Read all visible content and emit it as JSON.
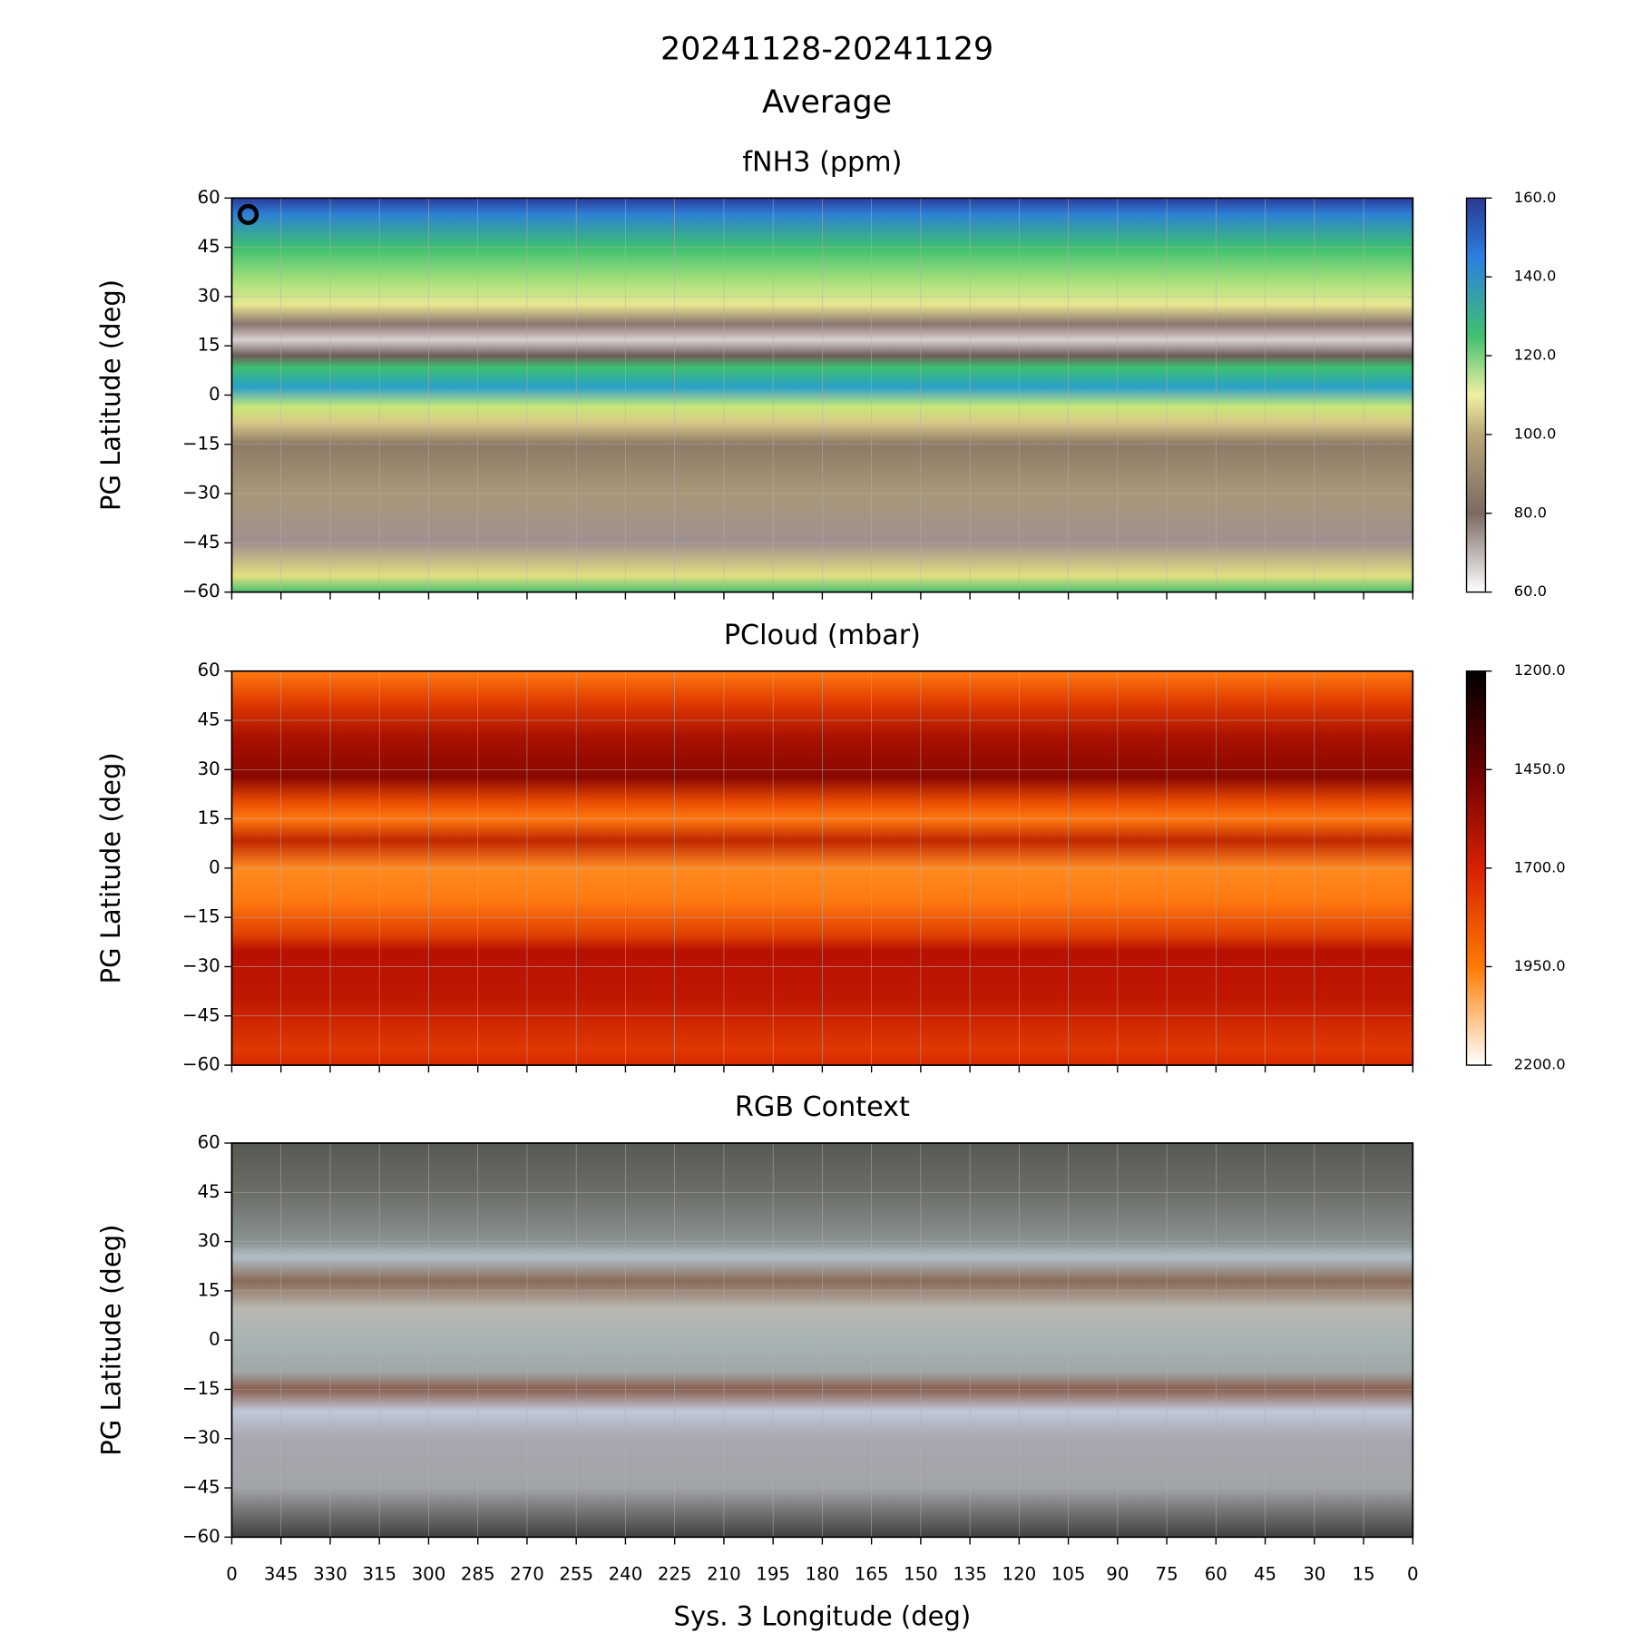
{
  "title": [
    "20241128-20241129",
    "Average"
  ],
  "chart_data": [
    {
      "type": "heatmap",
      "title": "fNH3 (ppm)",
      "ylabel": "PG Latitude (deg)",
      "ylim": [
        -60,
        60
      ],
      "yticks": [
        {
          "value": -60,
          "label": "−60"
        },
        {
          "value": -45,
          "label": "−45"
        },
        {
          "value": -30,
          "label": "−30"
        },
        {
          "value": -15,
          "label": "−15"
        },
        0,
        15,
        30,
        45,
        60
      ],
      "marker": {
        "x": 355,
        "y": 55
      },
      "clim": [
        60,
        160
      ],
      "cticks": [
        {
          "value": 60,
          "label": "60.0"
        },
        {
          "value": 80,
          "label": "80.0"
        },
        {
          "value": 100,
          "label": "100.0"
        },
        {
          "value": 120,
          "label": "120.0"
        },
        {
          "value": 140,
          "label": "140.0"
        },
        {
          "value": 160,
          "label": "160.0"
        }
      ],
      "grid": true
    },
    {
      "type": "heatmap",
      "title": "PCloud (mbar)",
      "ylabel": "PG Latitude (deg)",
      "ylim": [
        -60,
        60
      ],
      "yticks": [
        {
          "value": -60,
          "label": "−60"
        },
        {
          "value": -45,
          "label": "−45"
        },
        {
          "value": -30,
          "label": "−30"
        },
        {
          "value": -15,
          "label": "−15"
        },
        0,
        15,
        30,
        45,
        60
      ],
      "clim": [
        2200,
        1200
      ],
      "cticks": [
        {
          "value": 1200,
          "label": "1200.0"
        },
        {
          "value": 1450,
          "label": "1450.0"
        },
        {
          "value": 1700,
          "label": "1700.0"
        },
        {
          "value": 1950,
          "label": "1950.0"
        },
        {
          "value": 2200,
          "label": "2200.0"
        }
      ],
      "grid": true
    },
    {
      "type": "image",
      "title": "RGB Context",
      "ylabel": "PG Latitude (deg)",
      "xlabel": "Sys. 3 Longitude (deg)",
      "ylim": [
        -60,
        60
      ],
      "yticks": [
        {
          "value": -60,
          "label": "−60"
        },
        {
          "value": -45,
          "label": "−45"
        },
        {
          "value": -30,
          "label": "−30"
        },
        {
          "value": -15,
          "label": "−15"
        },
        0,
        15,
        30,
        45,
        60
      ],
      "xlim": [
        360,
        0
      ],
      "xticks": [
        {
          "value": 360,
          "label": "0"
        },
        345,
        330,
        315,
        300,
        285,
        270,
        255,
        240,
        225,
        210,
        195,
        180,
        165,
        150,
        135,
        120,
        105,
        90,
        75,
        60,
        45,
        30,
        15,
        0
      ],
      "grid": true
    }
  ]
}
